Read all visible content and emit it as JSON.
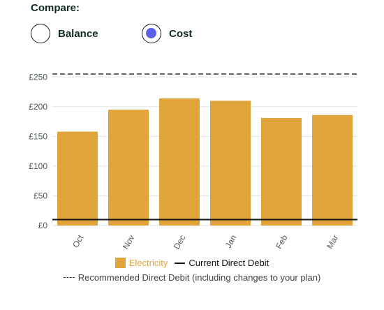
{
  "compare": {
    "title": "Compare:",
    "options": [
      {
        "label": "Balance",
        "selected": false
      },
      {
        "label": "Cost",
        "selected": true
      }
    ]
  },
  "colors": {
    "bar": "#e0a43a",
    "radio_selected": "#5b61ea",
    "current_line": "#111111",
    "recommended_line": "#333333"
  },
  "chart_data": {
    "type": "bar",
    "categories": [
      "Oct",
      "Nov",
      "Dec",
      "Jan",
      "Feb",
      "Mar"
    ],
    "series": [
      {
        "name": "Electricity",
        "values": [
          158,
          195,
          214,
          210,
          181,
          186
        ]
      }
    ],
    "reference_lines": [
      {
        "name": "Current Direct Debit",
        "value": 10,
        "style": "solid"
      },
      {
        "name": "Recommended Direct Debit (including changes to your plan)",
        "value": 255,
        "style": "dashed"
      }
    ],
    "y_ticks": [
      "£0",
      "£50",
      "£100",
      "£150",
      "£200",
      "£250"
    ],
    "y_tick_values": [
      0,
      50,
      100,
      150,
      200,
      250
    ],
    "ylim": [
      0,
      255
    ],
    "grid": true,
    "legend_position": "bottom"
  },
  "legend": {
    "electricity": "Electricity",
    "current": "Current Direct Debit",
    "recommended": "Recommended Direct Debit (including changes to your plan)"
  }
}
